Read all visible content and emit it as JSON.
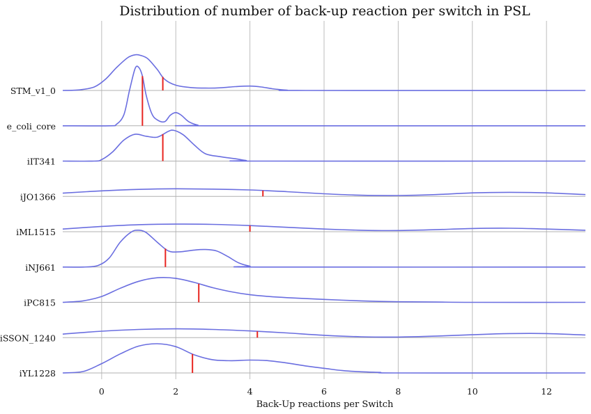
{
  "chart_data": {
    "type": "ridgeline",
    "title": "Distribution of number of back-up reaction per switch in PSL",
    "xlabel": "Back-Up reactions per Switch",
    "xlim": [
      -1.05,
      13.05
    ],
    "xticks": [
      0,
      2,
      4,
      6,
      8,
      10,
      12
    ],
    "grid": "vertical",
    "colors": {
      "density": "#6a6ee0",
      "median": "#e8241f"
    },
    "series": [
      {
        "name": "STM_v1_0",
        "median": 1.65,
        "peak": 1.95,
        "density": [
          [
            -1.05,
            0
          ],
          [
            -0.6,
            0.02
          ],
          [
            -0.2,
            0.12
          ],
          [
            0.1,
            0.38
          ],
          [
            0.4,
            0.78
          ],
          [
            0.7,
            1.12
          ],
          [
            0.9,
            1.22
          ],
          [
            1.05,
            1.2
          ],
          [
            1.25,
            1.08
          ],
          [
            1.5,
            0.72
          ],
          [
            1.7,
            0.38
          ],
          [
            2.0,
            0.18
          ],
          [
            2.4,
            0.1
          ],
          [
            2.8,
            0.08
          ],
          [
            3.2,
            0.09
          ],
          [
            3.6,
            0.13
          ],
          [
            4.0,
            0.15
          ],
          [
            4.3,
            0.12
          ],
          [
            4.6,
            0.06
          ],
          [
            5.0,
            0.01
          ],
          [
            5.5,
            0
          ],
          [
            13.05,
            0
          ]
        ]
      },
      {
        "name": "e_coli_core",
        "median": 1.1,
        "peak": 2.0,
        "density": [
          [
            -1.05,
            0
          ],
          [
            0.2,
            0
          ],
          [
            0.4,
            0.05
          ],
          [
            0.6,
            0.38
          ],
          [
            0.75,
            1.2
          ],
          [
            0.9,
            1.95
          ],
          [
            1.0,
            2.0
          ],
          [
            1.1,
            1.7
          ],
          [
            1.2,
            1.05
          ],
          [
            1.35,
            0.42
          ],
          [
            1.5,
            0.2
          ],
          [
            1.7,
            0.14
          ],
          [
            1.85,
            0.36
          ],
          [
            2.0,
            0.45
          ],
          [
            2.15,
            0.36
          ],
          [
            2.35,
            0.14
          ],
          [
            2.6,
            0.02
          ],
          [
            2.8,
            0
          ],
          [
            13.05,
            0
          ]
        ]
      },
      {
        "name": "iIT341",
        "median": 1.65,
        "peak": 1.95,
        "density": [
          [
            -1.05,
            0
          ],
          [
            -0.2,
            0
          ],
          [
            0.0,
            0.05
          ],
          [
            0.3,
            0.32
          ],
          [
            0.6,
            0.72
          ],
          [
            0.9,
            0.92
          ],
          [
            1.2,
            0.85
          ],
          [
            1.5,
            0.82
          ],
          [
            1.8,
            1.02
          ],
          [
            1.95,
            1.05
          ],
          [
            2.2,
            0.9
          ],
          [
            2.5,
            0.55
          ],
          [
            2.8,
            0.25
          ],
          [
            3.2,
            0.15
          ],
          [
            3.6,
            0.08
          ],
          [
            3.9,
            0.02
          ],
          [
            4.2,
            0
          ],
          [
            13.05,
            0
          ]
        ]
      },
      {
        "name": "iJO1366",
        "median": 4.35,
        "peak": 1.0,
        "density": [
          [
            -1.05,
            0.11
          ],
          [
            0.0,
            0.19
          ],
          [
            1.0,
            0.24
          ],
          [
            2.0,
            0.26
          ],
          [
            3.0,
            0.25
          ],
          [
            4.0,
            0.22
          ],
          [
            5.0,
            0.16
          ],
          [
            6.0,
            0.09
          ],
          [
            7.0,
            0.04
          ],
          [
            8.0,
            0.03
          ],
          [
            9.0,
            0.06
          ],
          [
            10.0,
            0.12
          ],
          [
            11.0,
            0.14
          ],
          [
            12.0,
            0.12
          ],
          [
            13.05,
            0.06
          ]
        ]
      },
      {
        "name": "iML1515",
        "median": 4.0,
        "peak": 1.0,
        "density": [
          [
            -1.05,
            0.09
          ],
          [
            0.0,
            0.18
          ],
          [
            1.0,
            0.24
          ],
          [
            2.0,
            0.26
          ],
          [
            3.0,
            0.25
          ],
          [
            4.0,
            0.21
          ],
          [
            5.0,
            0.15
          ],
          [
            6.0,
            0.09
          ],
          [
            7.0,
            0.05
          ],
          [
            8.0,
            0.04
          ],
          [
            9.0,
            0.07
          ],
          [
            10.0,
            0.11
          ],
          [
            11.0,
            0.12
          ],
          [
            12.0,
            0.09
          ],
          [
            13.05,
            0.05
          ]
        ]
      },
      {
        "name": "iNJ661",
        "median": 1.72,
        "peak": 1.5,
        "density": [
          [
            -1.05,
            0
          ],
          [
            -0.5,
            0
          ],
          [
            -0.1,
            0.05
          ],
          [
            0.2,
            0.3
          ],
          [
            0.5,
            0.85
          ],
          [
            0.8,
            1.2
          ],
          [
            1.0,
            1.26
          ],
          [
            1.2,
            1.18
          ],
          [
            1.5,
            0.85
          ],
          [
            1.8,
            0.55
          ],
          [
            2.1,
            0.52
          ],
          [
            2.5,
            0.58
          ],
          [
            2.8,
            0.6
          ],
          [
            3.1,
            0.55
          ],
          [
            3.4,
            0.36
          ],
          [
            3.7,
            0.14
          ],
          [
            4.0,
            0.03
          ],
          [
            4.3,
            0
          ],
          [
            13.05,
            0
          ]
        ]
      },
      {
        "name": "iPC815",
        "median": 2.62,
        "peak": 1.0,
        "density": [
          [
            -1.05,
            0
          ],
          [
            -0.5,
            0.05
          ],
          [
            0.0,
            0.2
          ],
          [
            0.5,
            0.48
          ],
          [
            1.0,
            0.72
          ],
          [
            1.5,
            0.84
          ],
          [
            2.0,
            0.82
          ],
          [
            2.5,
            0.68
          ],
          [
            3.0,
            0.5
          ],
          [
            3.5,
            0.36
          ],
          [
            4.0,
            0.26
          ],
          [
            4.5,
            0.2
          ],
          [
            5.0,
            0.16
          ],
          [
            6.0,
            0.1
          ],
          [
            7.0,
            0.05
          ],
          [
            8.0,
            0.02
          ],
          [
            9.0,
            0.01
          ],
          [
            10.0,
            0
          ],
          [
            13.05,
            0
          ]
        ]
      },
      {
        "name": "iSSON_1240",
        "median": 4.2,
        "peak": 1.0,
        "density": [
          [
            -1.05,
            0.12
          ],
          [
            0.0,
            0.22
          ],
          [
            1.0,
            0.28
          ],
          [
            2.0,
            0.3
          ],
          [
            3.0,
            0.28
          ],
          [
            4.0,
            0.23
          ],
          [
            5.0,
            0.16
          ],
          [
            6.0,
            0.08
          ],
          [
            7.0,
            0.03
          ],
          [
            8.0,
            0.02
          ],
          [
            9.0,
            0.05
          ],
          [
            10.0,
            0.1
          ],
          [
            11.0,
            0.14
          ],
          [
            12.0,
            0.14
          ],
          [
            13.05,
            0.09
          ]
        ]
      },
      {
        "name": "iYL1228",
        "median": 2.45,
        "peak": 1.0,
        "density": [
          [
            -1.05,
            0
          ],
          [
            -0.5,
            0.05
          ],
          [
            0.0,
            0.32
          ],
          [
            0.5,
            0.65
          ],
          [
            1.0,
            0.92
          ],
          [
            1.5,
            1.0
          ],
          [
            2.0,
            0.9
          ],
          [
            2.5,
            0.62
          ],
          [
            3.0,
            0.45
          ],
          [
            3.5,
            0.42
          ],
          [
            4.0,
            0.44
          ],
          [
            4.5,
            0.42
          ],
          [
            5.0,
            0.34
          ],
          [
            5.5,
            0.24
          ],
          [
            6.0,
            0.16
          ],
          [
            6.5,
            0.08
          ],
          [
            7.0,
            0.04
          ],
          [
            7.5,
            0.02
          ],
          [
            8.0,
            0
          ],
          [
            13.05,
            0
          ]
        ]
      }
    ]
  }
}
